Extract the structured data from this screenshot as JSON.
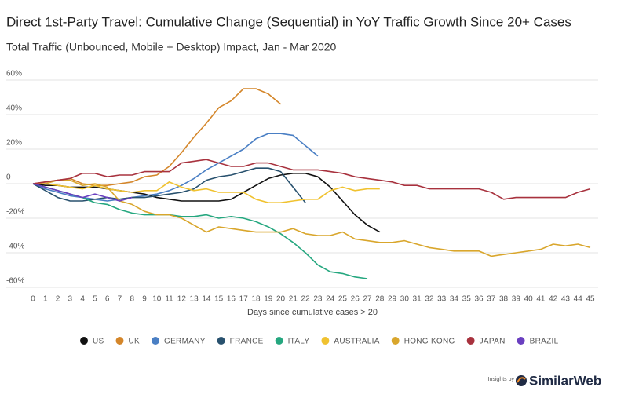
{
  "chart_data": {
    "type": "line",
    "title": "Direct 1st-Party Travel: Cumulative Change (Sequential) in YoY Traffic Growth Since 20+ Cases",
    "subtitle": "Total Traffic (Unbounced, Mobile + Desktop) Impact, Jan - Mar 2020",
    "x_label": "Days since cumulative cases > 20",
    "brand_prefix": "Insights by",
    "brand": "SimilarWeb",
    "x": [
      0,
      1,
      2,
      3,
      4,
      5,
      6,
      7,
      8,
      9,
      10,
      11,
      12,
      13,
      14,
      15,
      16,
      17,
      18,
      19,
      20,
      21,
      22,
      23,
      24,
      25,
      26,
      27,
      28,
      29,
      30,
      31,
      32,
      33,
      34,
      35,
      36,
      37,
      38,
      39,
      40,
      41,
      42,
      43,
      44,
      45
    ],
    "xlim": [
      0,
      45
    ],
    "xticks": [
      0,
      1,
      2,
      3,
      4,
      5,
      6,
      7,
      8,
      9,
      10,
      11,
      12,
      13,
      14,
      15,
      16,
      17,
      18,
      19,
      20,
      21,
      22,
      23,
      24,
      25,
      26,
      27,
      28,
      29,
      30,
      31,
      32,
      33,
      34,
      35,
      36,
      37,
      38,
      39,
      40,
      41,
      42,
      43,
      44,
      45
    ],
    "ylim": [
      -60,
      60
    ],
    "yticks": [
      {
        "value": -60,
        "label": "-60%"
      },
      {
        "value": -40,
        "label": "-40%"
      },
      {
        "value": -20,
        "label": "-20%"
      },
      0,
      {
        "value": 20,
        "label": "20%"
      },
      {
        "value": 40,
        "label": "40%"
      },
      {
        "value": 60,
        "label": "60%"
      }
    ],
    "grid": true,
    "legend": "bottom",
    "series": [
      {
        "name": "US",
        "color": "#111111",
        "values": [
          0,
          -1,
          -1,
          -2,
          -2,
          -2,
          -3,
          -4,
          -5,
          -6,
          -8,
          -9,
          -10,
          -10,
          -10,
          -10,
          -9,
          -5,
          -1,
          3,
          5,
          6,
          6,
          4,
          -2,
          -10,
          -18,
          -24,
          -28,
          null,
          null,
          null,
          null,
          null,
          null,
          null,
          null,
          null,
          null,
          null,
          null,
          null,
          null,
          null,
          null,
          null
        ]
      },
      {
        "name": "UK",
        "color": "#d4862a",
        "values": [
          0,
          1,
          2,
          3,
          0,
          -1,
          -1,
          0,
          1,
          4,
          5,
          10,
          18,
          27,
          35,
          44,
          48,
          55,
          55,
          52,
          46,
          null,
          null,
          null,
          null,
          null,
          null,
          null,
          null,
          null,
          null,
          null,
          null,
          null,
          null,
          null,
          null,
          null,
          null,
          null,
          null,
          null,
          null,
          null,
          null,
          null
        ]
      },
      {
        "name": "GERMANY",
        "color": "#4a7fc4",
        "values": [
          0,
          -3,
          -5,
          -7,
          -8,
          -9,
          -10,
          -9,
          -8,
          -7,
          -6,
          -4,
          -1,
          3,
          8,
          12,
          16,
          20,
          26,
          29,
          29,
          28,
          22,
          16,
          null,
          null,
          null,
          null,
          null,
          null,
          null,
          null,
          null,
          null,
          null,
          null,
          null,
          null,
          null,
          null,
          null,
          null,
          null,
          null,
          null,
          null
        ]
      },
      {
        "name": "FRANCE",
        "color": "#28516e",
        "values": [
          0,
          -4,
          -8,
          -10,
          -10,
          -9,
          -8,
          -9,
          -8,
          -8,
          -7,
          -6,
          -5,
          -3,
          2,
          4,
          5,
          7,
          9,
          9,
          7,
          -2,
          -11,
          null,
          null,
          null,
          null,
          null,
          null,
          null,
          null,
          null,
          null,
          null,
          null,
          null,
          null,
          null,
          null,
          null,
          null,
          null,
          null,
          null,
          null,
          null
        ]
      },
      {
        "name": "ITALY",
        "color": "#25a77f",
        "values": [
          0,
          -2,
          -4,
          -6,
          -8,
          -11,
          -12,
          -15,
          -17,
          -18,
          -18,
          -18,
          -19,
          -19,
          -18,
          -20,
          -19,
          -20,
          -22,
          -25,
          -29,
          -34,
          -40,
          -47,
          -51,
          -52,
          -54,
          -55,
          null,
          null,
          null,
          null,
          null,
          null,
          null,
          null,
          null,
          null,
          null,
          null,
          null,
          null,
          null,
          null,
          null,
          null
        ]
      },
      {
        "name": "AUSTRALIA",
        "color": "#f0c230",
        "values": [
          0,
          0,
          -1,
          -2,
          -3,
          -1,
          -3,
          -4,
          -5,
          -4,
          -4,
          1,
          -2,
          -4,
          -3,
          -5,
          -5,
          -5,
          -9,
          -11,
          -11,
          -10,
          -9,
          -9,
          -4,
          -2,
          -4,
          -3,
          -3,
          null,
          null,
          null,
          null,
          null,
          null,
          null,
          null,
          null,
          null,
          null,
          null,
          null,
          null,
          null,
          null,
          null
        ]
      },
      {
        "name": "HONG KONG",
        "color": "#d9a62c",
        "values": [
          0,
          0,
          2,
          2,
          -1,
          0,
          -2,
          -10,
          -12,
          -16,
          -18,
          -18,
          -20,
          -24,
          -28,
          -25,
          -26,
          -27,
          -28,
          -28,
          -28,
          -26,
          -29,
          -30,
          -30,
          -28,
          -32,
          -33,
          -34,
          -34,
          -33,
          -35,
          -37,
          -38,
          -39,
          -39,
          -39,
          -42,
          -41,
          -40,
          -39,
          -38,
          -35,
          -36,
          -35,
          -37
        ]
      },
      {
        "name": "JAPAN",
        "color": "#a8323e",
        "values": [
          0,
          1,
          2,
          3,
          6,
          6,
          4,
          5,
          5,
          7,
          7,
          7,
          12,
          13,
          14,
          12,
          10,
          10,
          12,
          12,
          10,
          8,
          8,
          8,
          7,
          6,
          4,
          3,
          2,
          1,
          -1,
          -1,
          -3,
          -3,
          -3,
          -3,
          -3,
          -5,
          -9,
          -8,
          -8,
          -8,
          -8,
          -8,
          -5,
          -3
        ]
      },
      {
        "name": "BRAZIL",
        "color": "#6a3fc0",
        "values": [
          0,
          -2,
          -4,
          -6,
          -8,
          -6,
          -8,
          -10,
          -8,
          null,
          null,
          null,
          null,
          null,
          null,
          null,
          null,
          null,
          null,
          null,
          null,
          null,
          null,
          null,
          null,
          null,
          null,
          null,
          null,
          null,
          null,
          null,
          null,
          null,
          null,
          null,
          null,
          null,
          null,
          null,
          null,
          null,
          null,
          null,
          null,
          null
        ]
      }
    ]
  }
}
